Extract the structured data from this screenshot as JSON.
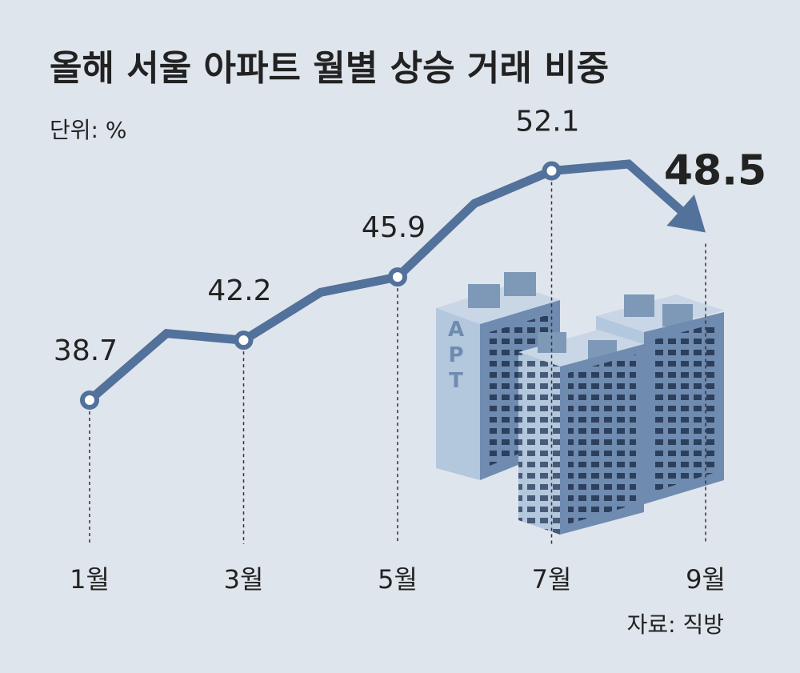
{
  "chart_data": {
    "type": "line",
    "title": "올해 서울 아파트 월별 상승 거래 비중",
    "unit_label": "단위: %",
    "source": "자료: 직방",
    "categories": [
      "1월",
      null,
      "3월",
      null,
      "5월",
      null,
      "7월",
      null,
      "9월"
    ],
    "series": [
      {
        "name": "상승 거래 비중",
        "color": "#52719b",
        "values": [
          38.7,
          42.6,
          42.2,
          45.0,
          45.9,
          50.2,
          52.1,
          52.5,
          48.5
        ]
      }
    ]
  }
}
